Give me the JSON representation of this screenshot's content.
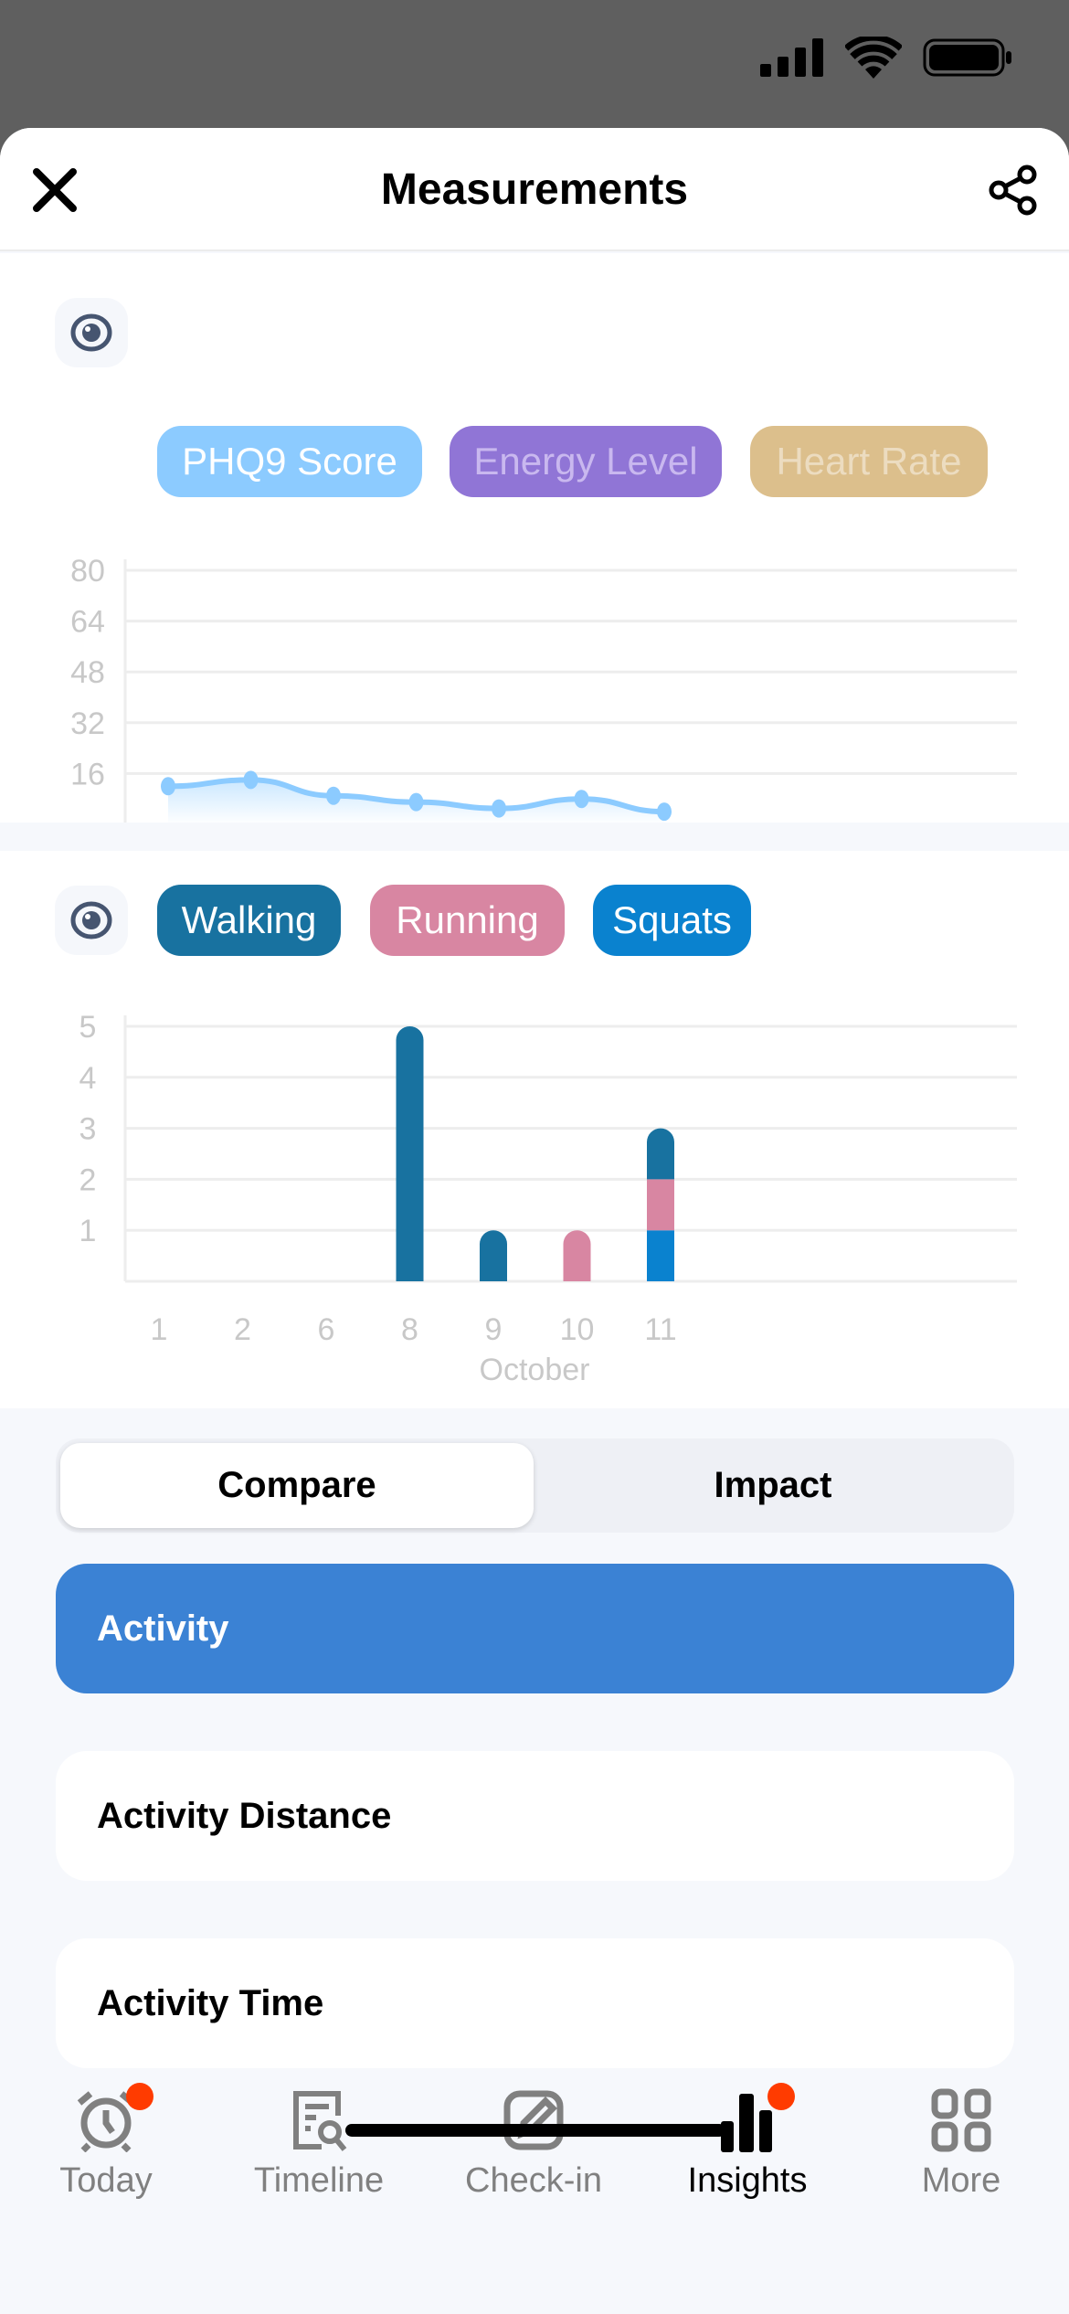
{
  "header": {
    "title": "Measurements",
    "close_icon": "close-icon",
    "share_icon": "share-icon"
  },
  "chart1": {
    "chips": [
      {
        "label": "PHQ9 Score",
        "bg": "#8ccbff",
        "fg": "#ffffff"
      },
      {
        "label": "Energy Level",
        "bg": "#9075d6",
        "fg": "#c9b8ef"
      },
      {
        "label": "Heart Rate",
        "bg": "#dcbf8c",
        "fg": "#ecdcc0"
      }
    ]
  },
  "chart2": {
    "chips": [
      {
        "label": "Walking",
        "bg": "#1872a0",
        "fg": "#ffffff"
      },
      {
        "label": "Running",
        "bg": "#d886a2",
        "fg": "#ffffff"
      },
      {
        "label": "Squats",
        "bg": "#0a82cf",
        "fg": "#ffffff"
      }
    ]
  },
  "chart_data": [
    {
      "type": "line",
      "title": "",
      "xlabel": "October",
      "ylabel": "",
      "categories": [
        "1",
        "2",
        "6",
        "8",
        "9",
        "10",
        "11"
      ],
      "ylim": [
        0,
        80
      ],
      "yticks": [
        "16",
        "32",
        "48",
        "64",
        "80"
      ],
      "series": [
        {
          "name": "PHQ9 Score",
          "color": "#8ccbff",
          "values": [
            12,
            14,
            9,
            7,
            5,
            8,
            4
          ]
        }
      ],
      "grid": true
    },
    {
      "type": "bar",
      "stacked": true,
      "title": "",
      "xlabel": "October",
      "ylabel": "",
      "categories": [
        "1",
        "2",
        "6",
        "8",
        "9",
        "10",
        "11"
      ],
      "ylim": [
        0,
        5
      ],
      "yticks": [
        "1",
        "2",
        "3",
        "4",
        "5"
      ],
      "series": [
        {
          "name": "Squats",
          "color": "#0a82cf",
          "values": [
            0,
            0,
            0,
            0,
            0,
            0,
            1
          ]
        },
        {
          "name": "Running",
          "color": "#d886a2",
          "values": [
            0,
            0,
            0,
            0,
            0,
            1,
            1
          ]
        },
        {
          "name": "Walking",
          "color": "#1872a0",
          "values": [
            0,
            0,
            0,
            5,
            1,
            0,
            1
          ]
        }
      ],
      "grid": true
    }
  ],
  "segment": {
    "compare": "Compare",
    "impact": "Impact"
  },
  "list": [
    "Activity",
    "Activity Distance",
    "Activity Time"
  ],
  "tabs": [
    {
      "label": "Today"
    },
    {
      "label": "Timeline"
    },
    {
      "label": "Check-in"
    },
    {
      "label": "Insights"
    },
    {
      "label": "More"
    }
  ]
}
